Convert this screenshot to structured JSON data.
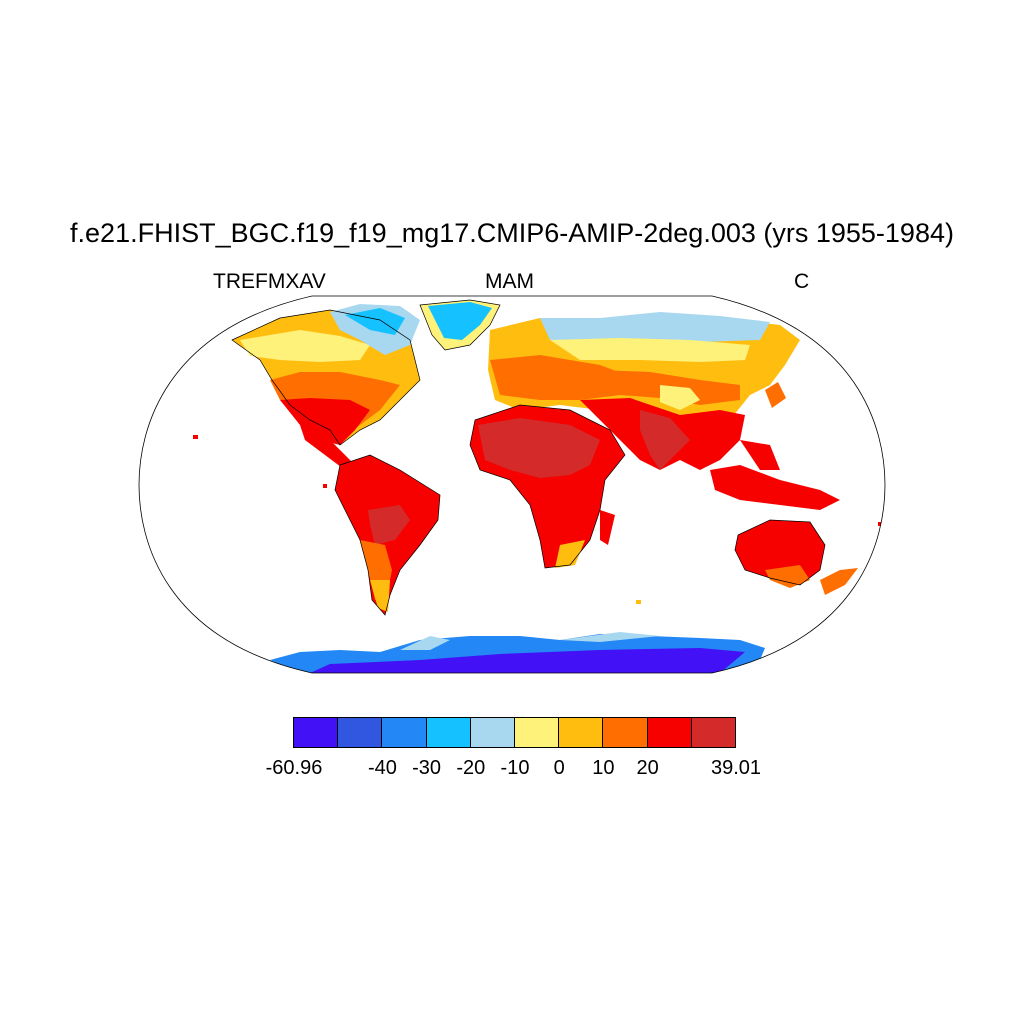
{
  "title": "f.e21.FHIST_BGC.f19_f19_mg17.CMIP6-AMIP-2deg.003 (yrs 1955-1984)",
  "left_string": "TREFMXAV",
  "center_string": "MAM",
  "right_string": "C",
  "colorbar": {
    "colors": [
      "#4311f6",
      "#3157e1",
      "#2387f6",
      "#16c1ff",
      "#a8d8f0",
      "#fff27a",
      "#ffbd0f",
      "#ff6e00",
      "#f70000",
      "#d42a2a"
    ],
    "labels": [
      "-60.96",
      "-40",
      "-30",
      "-20",
      "-10",
      "0",
      "10",
      "20",
      "39.01"
    ],
    "label_boundary_index": [
      0,
      2,
      3,
      4,
      5,
      6,
      7,
      8,
      10
    ]
  }
}
